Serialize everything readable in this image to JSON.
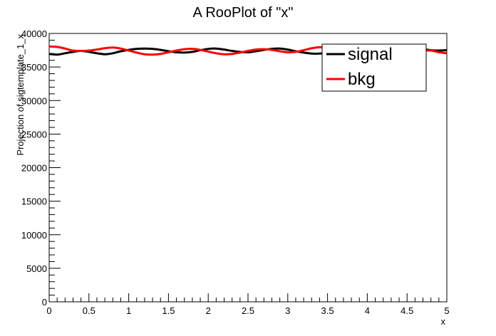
{
  "chart_data": {
    "type": "line",
    "title": "A RooPlot of \"x\"",
    "xlabel": "x",
    "ylabel": "Projection of sigtemplate_1_x",
    "xlim": [
      0,
      5
    ],
    "ylim": [
      0,
      40000
    ],
    "x_ticks": [
      0,
      0.5,
      1,
      1.5,
      2,
      2.5,
      3,
      3.5,
      4,
      4.5,
      5
    ],
    "x_tick_labels": [
      "0",
      "0.5",
      "1",
      "1.5",
      "2",
      "2.5",
      "3",
      "3.5",
      "4",
      "4.5",
      "5"
    ],
    "y_ticks": [
      0,
      5000,
      10000,
      15000,
      20000,
      25000,
      30000,
      35000,
      40000
    ],
    "y_tick_labels": [
      "0",
      "5000",
      "10000",
      "15000",
      "20000",
      "25000",
      "30000",
      "35000",
      "40000"
    ],
    "grid": false,
    "legend_position": "top-right",
    "x": [
      0,
      0.1,
      0.2,
      0.3,
      0.4,
      0.5,
      0.6,
      0.7,
      0.8,
      0.9,
      1.0,
      1.1,
      1.2,
      1.3,
      1.4,
      1.5,
      1.6,
      1.7,
      1.8,
      1.9,
      2.0,
      2.1,
      2.2,
      2.3,
      2.4,
      2.5,
      2.6,
      2.7,
      2.8,
      2.9,
      3.0,
      3.1,
      3.2,
      3.3,
      3.4,
      3.5,
      3.6,
      3.7,
      3.8,
      3.9,
      4.0,
      4.1,
      4.2,
      4.3,
      4.4,
      4.5,
      4.6,
      4.7,
      4.8,
      4.9,
      5.0
    ],
    "series": [
      {
        "name": "signal",
        "color": "#000000",
        "values": [
          36950,
          36850,
          37050,
          37250,
          37400,
          37250,
          37050,
          36900,
          37050,
          37350,
          37550,
          37700,
          37750,
          37700,
          37550,
          37350,
          37200,
          37150,
          37250,
          37500,
          37700,
          37750,
          37600,
          37400,
          37250,
          37200,
          37350,
          37550,
          37700,
          37750,
          37600,
          37350,
          37150,
          37000,
          37000,
          37150,
          37400,
          37650,
          37750,
          37650,
          37450,
          37300,
          37250,
          37350,
          37550,
          37700,
          37750,
          37650,
          37500,
          37450,
          37500
        ]
      },
      {
        "name": "bkg",
        "color": "#ff0000",
        "values": [
          38050,
          38000,
          37750,
          37450,
          37400,
          37450,
          37600,
          37800,
          37900,
          37750,
          37450,
          37150,
          36900,
          36850,
          36950,
          37200,
          37450,
          37650,
          37700,
          37550,
          37300,
          37050,
          36900,
          36950,
          37150,
          37400,
          37600,
          37650,
          37550,
          37350,
          37200,
          37250,
          37500,
          37800,
          37950,
          37850,
          37600,
          37350,
          37300,
          37450,
          37650,
          37800,
          37850,
          37750,
          37600,
          37450,
          37400,
          37450,
          37450,
          37200,
          37050
        ]
      }
    ]
  }
}
